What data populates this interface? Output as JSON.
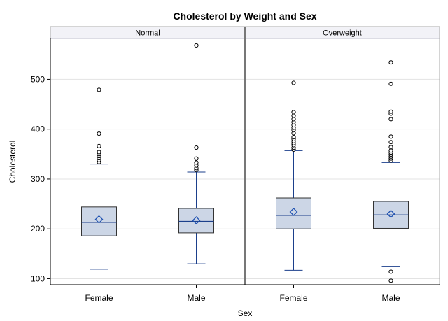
{
  "chart_data": {
    "type": "box",
    "title": "Cholesterol by Weight and Sex",
    "xlabel": "Sex",
    "ylabel": "Cholesterol",
    "ylim": [
      88,
      582
    ],
    "yticks": [
      100,
      200,
      300,
      400,
      500
    ],
    "grid": true,
    "panels": [
      {
        "name": "Normal",
        "categories": [
          "Female",
          "Male"
        ],
        "boxes": [
          {
            "category": "Female",
            "whisker_low": 119,
            "q1": 186,
            "median": 213,
            "q3": 244,
            "whisker_high": 330,
            "mean": 219,
            "outliers": [
              334,
              338,
              342,
              346,
              350,
              354,
              366,
              391,
              479
            ]
          },
          {
            "category": "Male",
            "whisker_low": 130,
            "q1": 192,
            "median": 215,
            "q3": 241,
            "whisker_high": 314,
            "mean": 217,
            "outliers": [
              318,
              322,
              327,
              333,
              341,
              363,
              568
            ]
          }
        ]
      },
      {
        "name": "Overweight",
        "categories": [
          "Female",
          "Male"
        ],
        "boxes": [
          {
            "category": "Female",
            "whisker_low": 117,
            "q1": 200,
            "median": 227,
            "q3": 262,
            "whisker_high": 357,
            "mean": 234,
            "outliers": [
              359,
              363,
              368,
              372,
              376,
              380,
              384,
              392,
              398,
              403,
              408,
              414,
              420,
              427,
              434,
              493
            ]
          },
          {
            "category": "Male",
            "whisker_low": 124,
            "q1": 201,
            "median": 228,
            "q3": 255,
            "whisker_high": 333,
            "mean": 230,
            "outliers": [
              96,
              114,
              337,
              341,
              345,
              349,
              353,
              357,
              364,
              374,
              385,
              420,
              431,
              435,
              491,
              534
            ]
          }
        ]
      }
    ]
  },
  "colors": {
    "box_fill": "#ccd6e6",
    "box_line": "#1b3f8b",
    "whisker": "#1b3f8b",
    "mean_marker": "#1b4fb0",
    "outlier": "#000000",
    "grid": "#e3e3e3",
    "panel_border": "#777777",
    "header_fill": "#f2f2f7"
  }
}
